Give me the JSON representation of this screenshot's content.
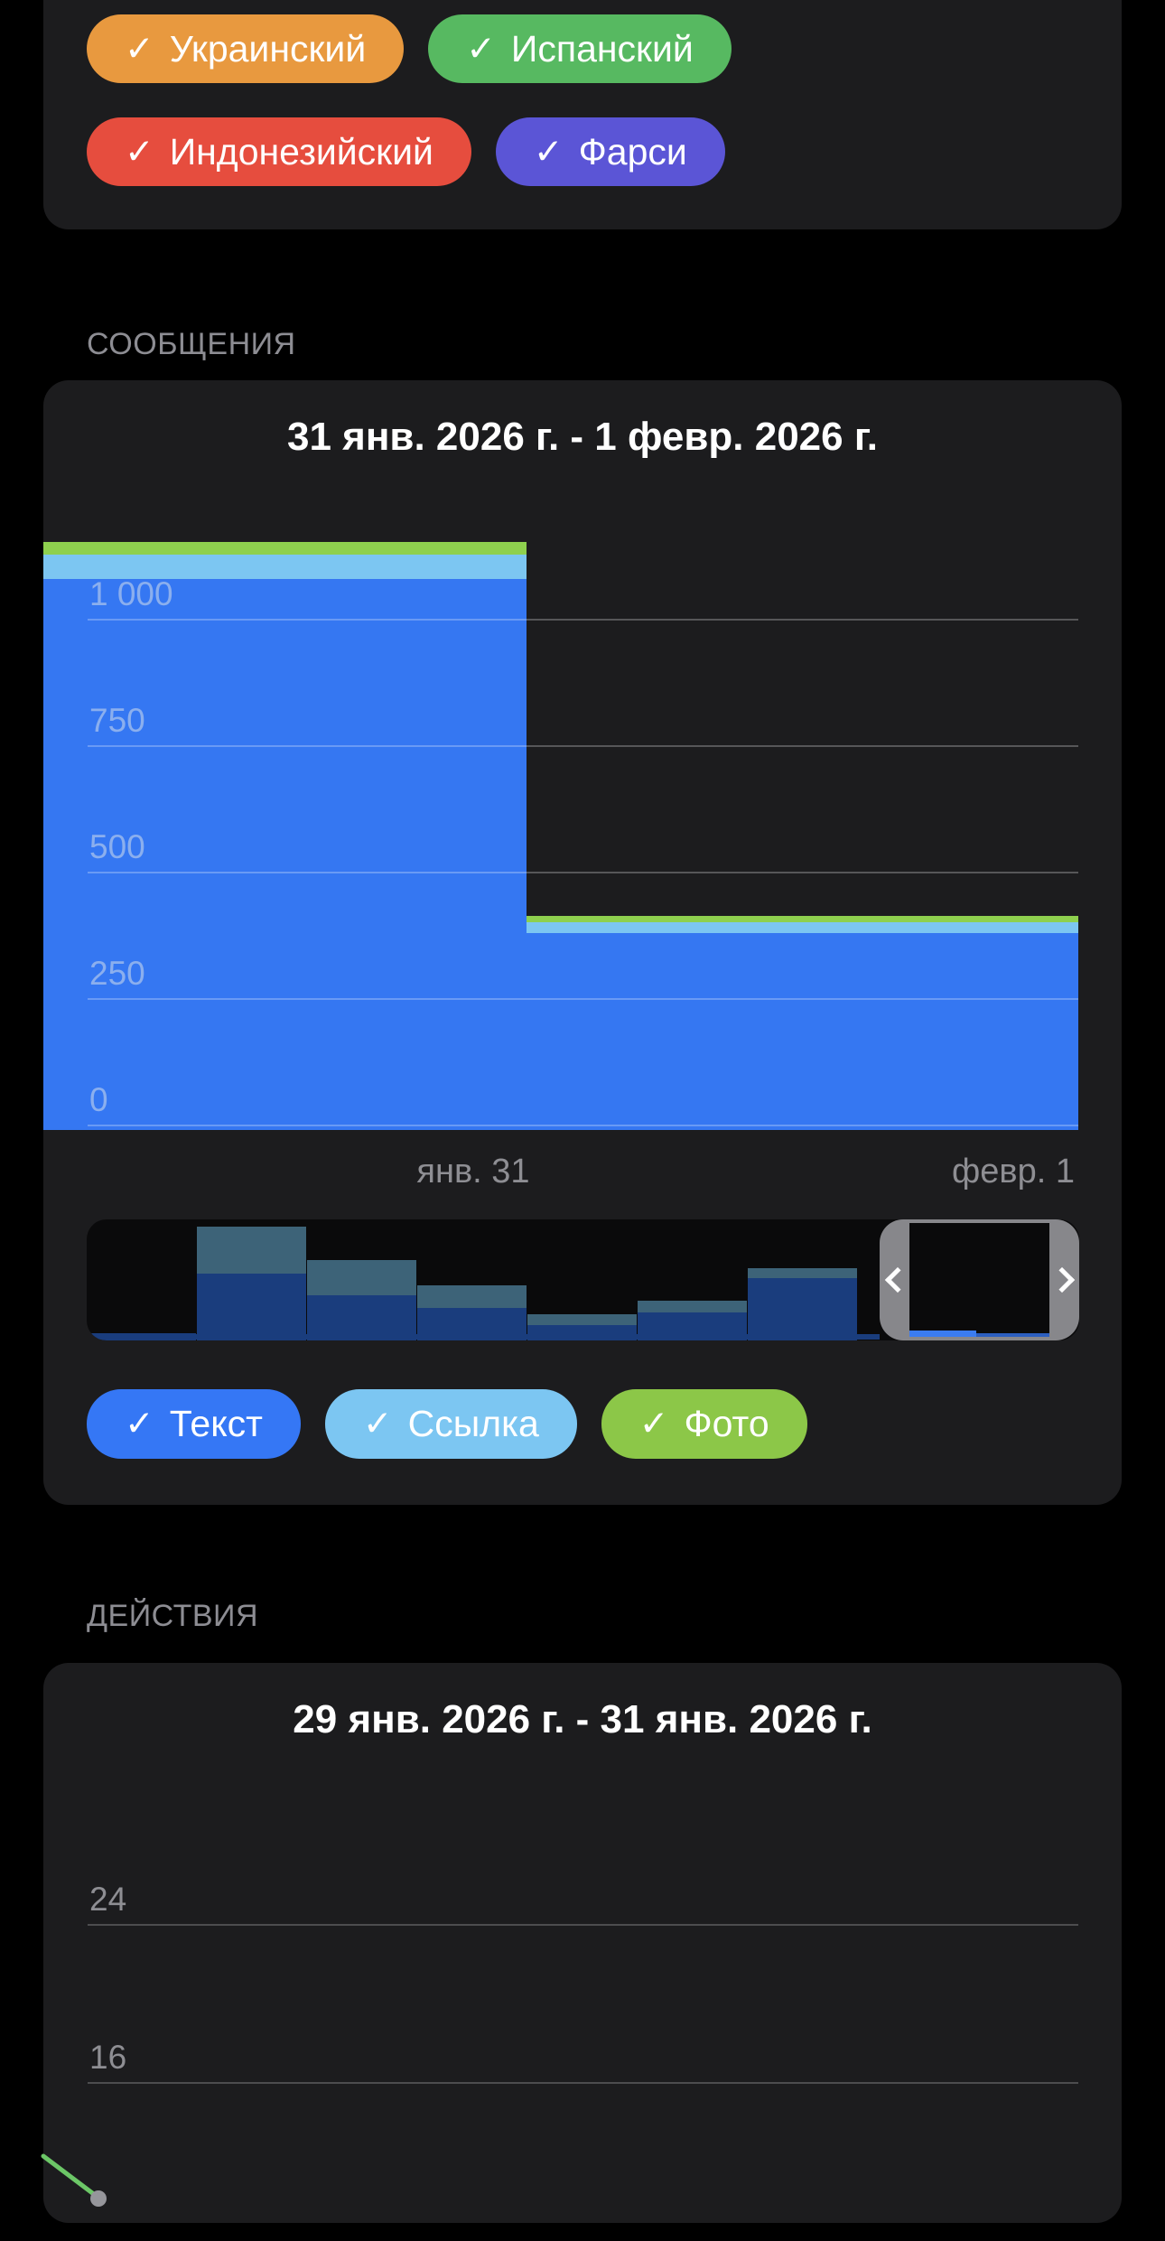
{
  "theme": {
    "page_bg": "#000000",
    "card_bg": "#1c1c1e",
    "section_label_color": "#8d8d93",
    "title_color": "#ffffff"
  },
  "check_glyph": "✓",
  "language_filters": {
    "chips": [
      {
        "label": "Украинский",
        "checked": true,
        "color": "#e8993f"
      },
      {
        "label": "Испанский",
        "checked": true,
        "color": "#57b961"
      },
      {
        "label": "Индонезийский",
        "checked": true,
        "color": "#e64d3e"
      },
      {
        "label": "Фарси",
        "checked": true,
        "color": "#5b55d6"
      }
    ]
  },
  "messages_section": {
    "header": "СООБЩЕНИЯ",
    "title": "31 янв. 2026 г. - 1 февр. 2026 г.",
    "chart_data": {
      "type": "stacked-step-area",
      "x_labels": [
        "янв. 31",
        "февр. 1"
      ],
      "yticks": [
        0,
        250,
        500,
        750,
        1000
      ],
      "ytick_labels": [
        "0",
        "250",
        "500",
        "750",
        "1 000"
      ],
      "ylim": [
        0,
        1300
      ],
      "grid": true,
      "legend_position": "bottom-chips",
      "series": [
        {
          "name": "Текст",
          "color": "#3577f2",
          "values": [
            1090,
            390
          ]
        },
        {
          "name": "Ссылка",
          "color": "#7cc6f2",
          "values": [
            48,
            20
          ]
        },
        {
          "name": "Фото",
          "color": "#8ed04e",
          "values": [
            25,
            14
          ]
        }
      ]
    },
    "filters": [
      {
        "label": "Текст",
        "checked": true,
        "color": "#3577f5"
      },
      {
        "label": "Ссылка",
        "checked": true,
        "color": "#7cc6f2"
      },
      {
        "label": "Фото",
        "checked": true,
        "color": "#8cc748"
      }
    ],
    "minimap": {
      "colors": {
        "link": "#3d6378",
        "text": "#1a3d7d",
        "selected": "#3b7cf1",
        "selected_dim": "#2c5fc0",
        "baseline": "#1a3d7d",
        "handle": "#87878b"
      },
      "preview_bars": [
        {
          "link": 0,
          "text": 8
        },
        {
          "link": 52,
          "text": 74
        },
        {
          "link": 39,
          "text": 50
        },
        {
          "link": 25,
          "text": 36
        },
        {
          "link": 12,
          "text": 17
        },
        {
          "link": 13,
          "text": 31
        },
        {
          "link": 11,
          "text": 69
        }
      ]
    }
  },
  "actions_section": {
    "header": "ДЕЙСТВИЯ",
    "title": "29 янв. 2026 г. - 31 янв. 2026 г.",
    "chart_data": {
      "type": "line",
      "yticks": [
        24,
        16
      ],
      "ytick_labels": [
        "24",
        "16"
      ],
      "grid": true,
      "series": [
        {
          "name": "line-1",
          "color": "#6cc767",
          "visible_segment_values": [
            12,
            10
          ]
        }
      ]
    }
  }
}
